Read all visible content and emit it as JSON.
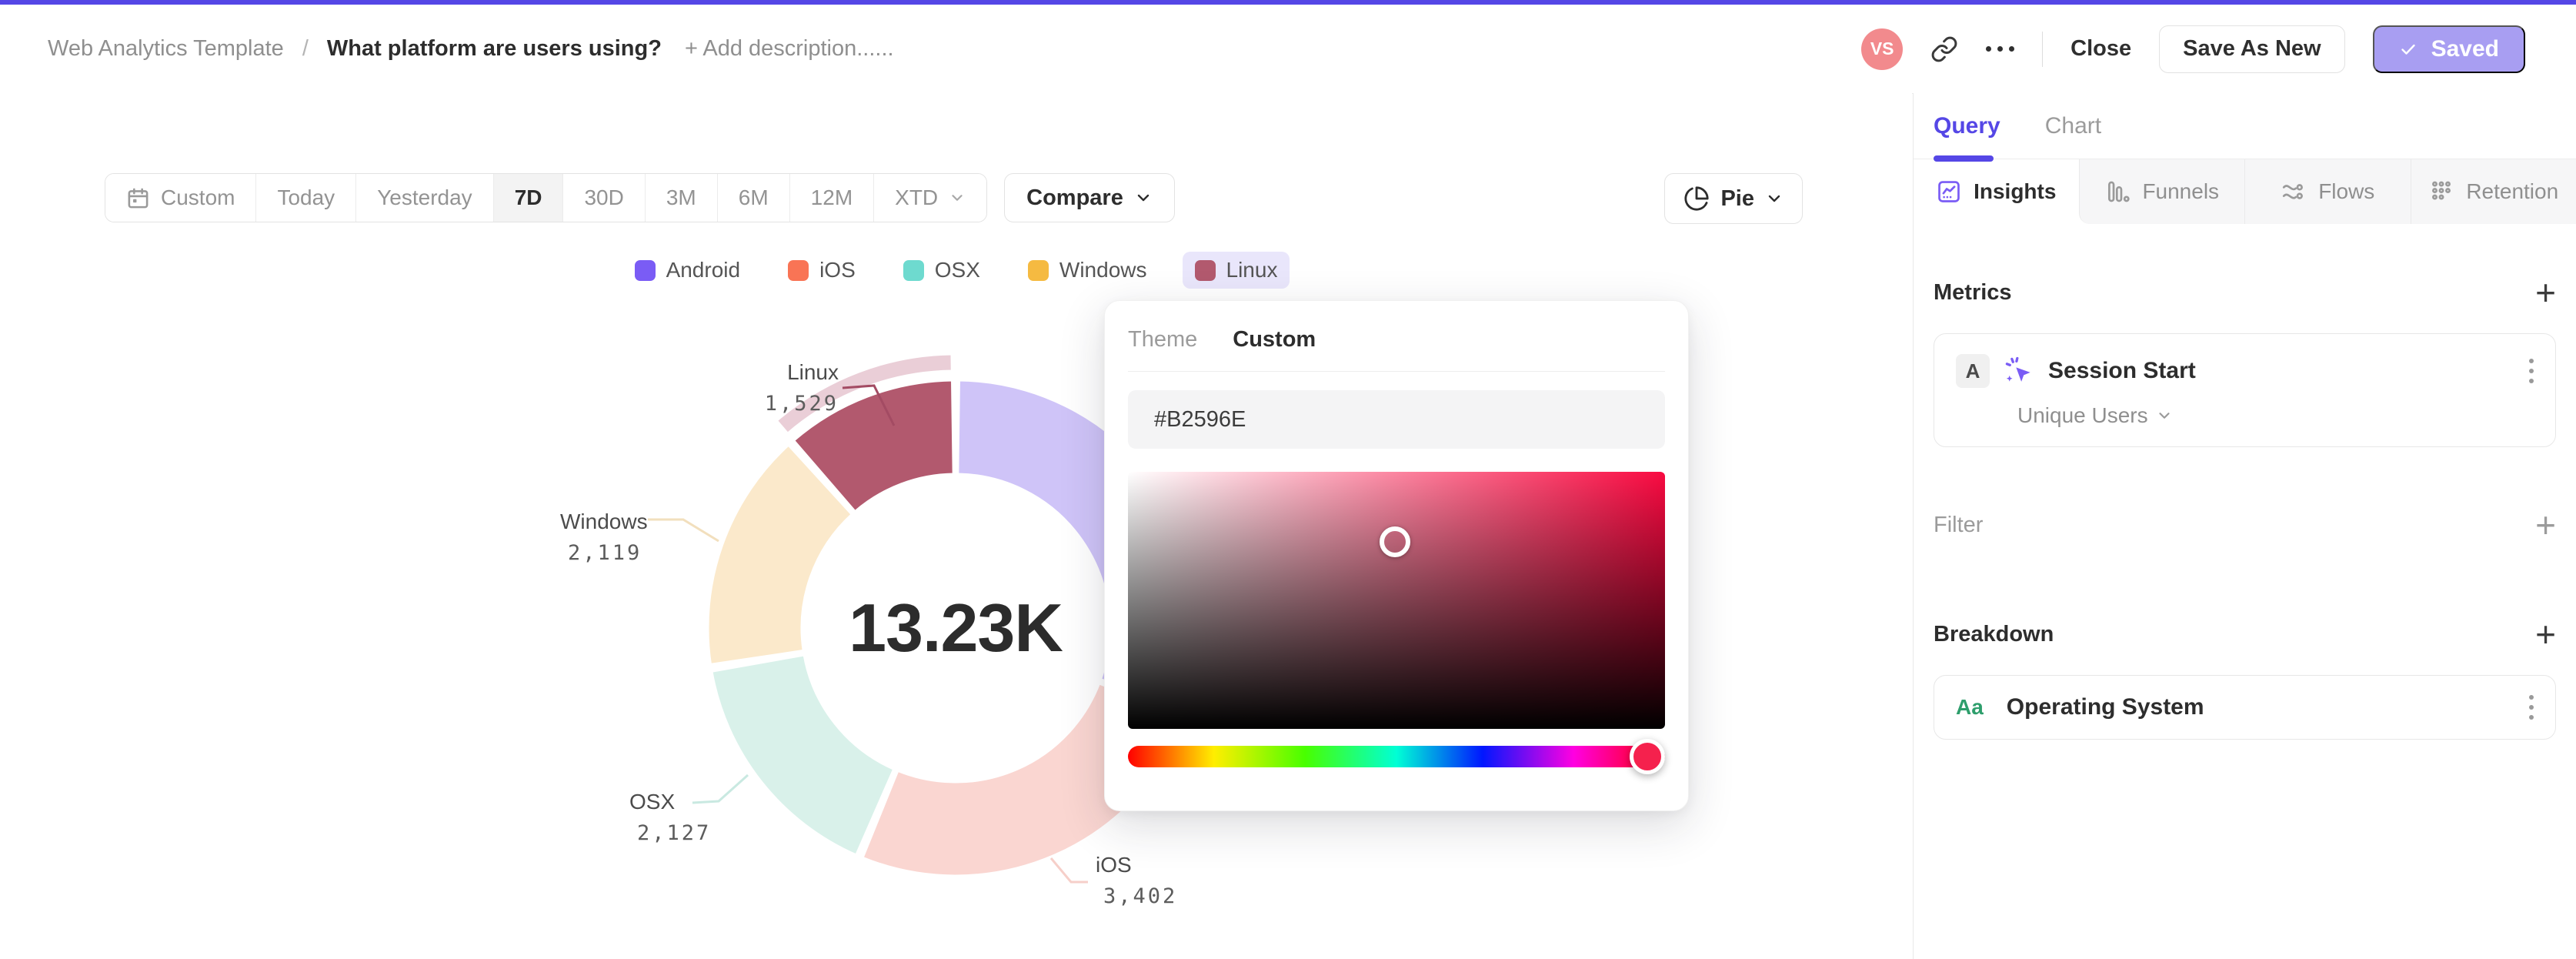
{
  "colors": {
    "accent": "#5547E6",
    "accent_soft": "#A89EF2",
    "avatar_bg": "#F28A8D",
    "legend_selected_bg": "#E9E6FB"
  },
  "header": {
    "breadcrumb": {
      "root": "Web Analytics Template",
      "separator": "/",
      "current": "What platform are users using?",
      "add_description": "+ Add description......"
    },
    "avatar_initials": "VS",
    "actions": {
      "close": "Close",
      "save_as_new": "Save As New",
      "saved": "Saved"
    }
  },
  "toolbar": {
    "ranges": [
      "Custom",
      "Today",
      "Yesterday",
      "7D",
      "30D",
      "3M",
      "6M",
      "12M",
      "XTD"
    ],
    "active_range": "7D",
    "compare_label": "Compare",
    "chart_type_label": "Pie"
  },
  "chart_data": {
    "type": "pie",
    "style": "donut",
    "center_total": "13.23K",
    "categories": [
      "Android",
      "iOS",
      "OSX",
      "Windows",
      "Linux"
    ],
    "values": [
      4053,
      3402,
      2127,
      2119,
      1529
    ],
    "colors": [
      "#7A5CF5",
      "#F97455",
      "#6EDACF",
      "#F5BA41",
      "#B2596E"
    ],
    "muted_colors": [
      "#CFC4F8",
      "#FAD6D1",
      "#D9F1EA",
      "#FBE9CB",
      "#B2596E"
    ],
    "selected_category": "Linux",
    "selected_halo": "#EACED7",
    "legend_position": "top",
    "callouts": [
      {
        "name": "Linux",
        "value": "1,529",
        "leader_color": "#A34B63"
      },
      {
        "name": "Windows",
        "value": "2,119",
        "leader_color": "#F2DFBD"
      },
      {
        "name": "OSX",
        "value": "2,127",
        "leader_color": "#C9E9E1"
      },
      {
        "name": "iOS",
        "value": "3,402",
        "leader_color": "#F6CFC9"
      }
    ]
  },
  "color_picker": {
    "tabs": [
      "Theme",
      "Custom"
    ],
    "active_tab": "Custom",
    "hex_value": "#B2596E",
    "hue_handle_color": "#F5214D",
    "gradient_hue": "#F90A41"
  },
  "sidebar": {
    "tabs": [
      "Query",
      "Chart"
    ],
    "active_tab": "Query",
    "views": [
      {
        "label": "Insights"
      },
      {
        "label": "Funnels"
      },
      {
        "label": "Flows"
      },
      {
        "label": "Retention"
      }
    ],
    "active_view": "Insights",
    "metrics": {
      "title": "Metrics",
      "items": [
        {
          "badge": "A",
          "label": "Session Start",
          "aggregation": "Unique Users"
        }
      ]
    },
    "filter": {
      "title": "Filter"
    },
    "breakdown": {
      "title": "Breakdown",
      "items": [
        {
          "badge": "Aa",
          "label": "Operating System"
        }
      ]
    }
  }
}
